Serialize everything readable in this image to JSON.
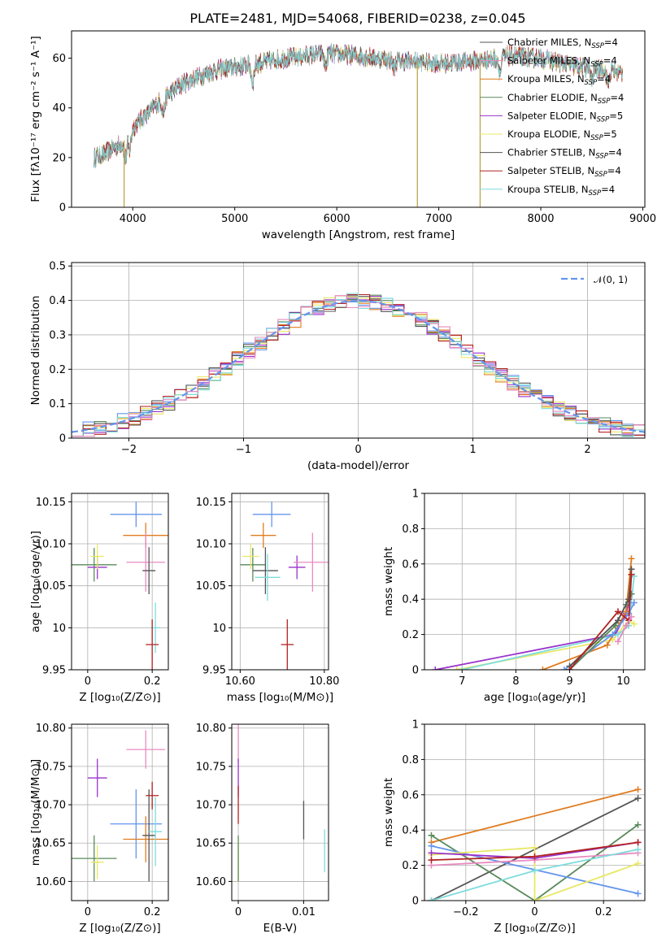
{
  "figure_title": "PLATE=2481, MJD=54068, FIBERID=0238, z=0.045",
  "colors": {
    "c0": "#6495ed",
    "c1": "#e07b1f",
    "c2": "#5a8a5a",
    "c3": "#9932cc",
    "c4": "#e8e866",
    "c5": "#555555",
    "c6": "#b22222",
    "c7": "#7fdcdc",
    "c8": "#e88bc0",
    "normal": "#6495ed"
  },
  "chart_data": [
    {
      "id": "spectrum",
      "type": "line",
      "xlabel": "wavelength [Angstrom, rest frame]",
      "ylabel": "Flux [fλ10⁻¹⁷ erg cm⁻² s⁻¹ A⁻¹]",
      "xlim": [
        3400,
        9020
      ],
      "ylim": [
        0,
        71
      ],
      "xticks": [
        4000,
        5000,
        6000,
        7000,
        8000,
        9000
      ],
      "yticks": [
        0,
        20,
        40,
        60
      ],
      "legend_position": "upper-right",
      "legend": [
        {
          "label": "Chabrier MILES, N",
          "sub": "SSP",
          "suffix": "=4",
          "color": "#555555"
        },
        {
          "label": "Salpeter MILES, N",
          "sub": "SSP",
          "suffix": "=4",
          "color": "#e88bc0"
        },
        {
          "label": "Kroupa MILES, N",
          "sub": "SSP",
          "suffix": "=4",
          "color": "#e07b1f"
        },
        {
          "label": "Chabrier ELODIE, N",
          "sub": "SSP",
          "suffix": "=4",
          "color": "#5a8a5a"
        },
        {
          "label": "Salpeter ELODIE, N",
          "sub": "SSP",
          "suffix": "=5",
          "color": "#9932cc"
        },
        {
          "label": "Kroupa ELODIE, N",
          "sub": "SSP",
          "suffix": "=5",
          "color": "#e8e866"
        },
        {
          "label": "Chabrier STELIB, N",
          "sub": "SSP",
          "suffix": "=4",
          "color": "#555555"
        },
        {
          "label": "Salpeter STELIB, N",
          "sub": "SSP",
          "suffix": "=4",
          "color": "#b22222"
        },
        {
          "label": "Kroupa STELIB, N",
          "sub": "SSP",
          "suffix": "=4",
          "color": "#7fdcdc"
        }
      ],
      "continuum": [
        [
          3620,
          20
        ],
        [
          3700,
          21
        ],
        [
          3900,
          26
        ],
        [
          4000,
          32
        ],
        [
          4300,
          44
        ],
        [
          4500,
          50
        ],
        [
          4800,
          55
        ],
        [
          5100,
          57
        ],
        [
          5500,
          60
        ],
        [
          5900,
          62
        ],
        [
          6200,
          61
        ],
        [
          6600,
          59
        ],
        [
          7000,
          58
        ],
        [
          7400,
          59
        ],
        [
          7700,
          61
        ],
        [
          8000,
          60
        ],
        [
          8300,
          57
        ],
        [
          8700,
          55
        ],
        [
          8800,
          54
        ]
      ],
      "dips": [
        [
          3930,
          8
        ],
        [
          3970,
          7
        ],
        [
          4300,
          6
        ],
        [
          5175,
          7
        ],
        [
          5890,
          5
        ],
        [
          6560,
          3
        ],
        [
          7600,
          6
        ],
        [
          8500,
          5
        ],
        [
          8660,
          6
        ]
      ],
      "spikes": [
        {
          "x": 3915,
          "y": 0
        },
        {
          "x": 6790,
          "y": 0
        },
        {
          "x": 7405,
          "y": 0
        }
      ]
    },
    {
      "id": "residuals",
      "type": "histogram",
      "xlabel": "(data-model)/error",
      "ylabel": "Normed distribution",
      "xlim": [
        -2.5,
        2.5
      ],
      "ylim": [
        0,
        0.51
      ],
      "xticks": [
        -2,
        -1,
        0,
        1,
        2
      ],
      "yticks": [
        0.0,
        0.1,
        0.2,
        0.3,
        0.4,
        0.5
      ],
      "grid": true,
      "bin_width": 0.1,
      "normal_curve": {
        "label": "𝒩(0, 1)",
        "mean": 0,
        "sigma": 1
      },
      "legend_position": "upper-right"
    },
    {
      "id": "age-vs-Z",
      "type": "errorbar",
      "xlabel": "Z [log₁₀(Z/Z⊙)]",
      "ylabel": "age  [log₁₀(age/yr)]",
      "xlim": [
        -0.05,
        0.25
      ],
      "ylim": [
        9.95,
        10.16
      ],
      "xticks": [
        0.0,
        0.2
      ],
      "yticks": [
        9.95,
        10.0,
        10.05,
        10.1,
        10.15
      ],
      "grid": true,
      "points": [
        {
          "x": 0.15,
          "y": 10.135,
          "xerr": 0.08,
          "yerr": 0.015,
          "color": "#6495ed"
        },
        {
          "x": 0.18,
          "y": 10.11,
          "xerr": 0.07,
          "yerr": 0.015,
          "color": "#e07b1f"
        },
        {
          "x": 0.02,
          "y": 10.075,
          "xerr": 0.07,
          "yerr": 0.02,
          "color": "#5a8a5a"
        },
        {
          "x": 0.03,
          "y": 10.072,
          "xerr": 0.03,
          "yerr": 0.014,
          "color": "#9932cc"
        },
        {
          "x": 0.03,
          "y": 10.085,
          "xerr": 0.02,
          "yerr": 0.015,
          "color": "#e8e866"
        },
        {
          "x": 0.18,
          "y": 10.078,
          "xerr": 0.06,
          "yerr": 0.035,
          "color": "#e88bc0"
        },
        {
          "x": 0.19,
          "y": 10.068,
          "xerr": 0.02,
          "yerr": 0.028,
          "color": "#555555"
        },
        {
          "x": 0.21,
          "y": 10.0,
          "xerr": 0.015,
          "yerr": 0.03,
          "color": "#7fdcdc"
        },
        {
          "x": 0.2,
          "y": 9.98,
          "xerr": 0.02,
          "yerr": 0.03,
          "color": "#b22222"
        }
      ]
    },
    {
      "id": "age-vs-mass",
      "type": "errorbar",
      "xlabel": "mass [log₁₀(M/M⊙)]",
      "ylabel": "",
      "xlim": [
        10.58,
        10.81
      ],
      "ylim": [
        9.95,
        10.16
      ],
      "xticks": [
        10.6,
        10.8
      ],
      "yticks": [
        9.95,
        10.0,
        10.05,
        10.1,
        10.15
      ],
      "grid": true,
      "points": [
        {
          "x": 10.675,
          "y": 10.135,
          "xerr": 0.045,
          "yerr": 0.015,
          "color": "#6495ed"
        },
        {
          "x": 10.655,
          "y": 10.11,
          "xerr": 0.03,
          "yerr": 0.015,
          "color": "#e07b1f"
        },
        {
          "x": 10.63,
          "y": 10.075,
          "xerr": 0.03,
          "yerr": 0.02,
          "color": "#5a8a5a"
        },
        {
          "x": 10.735,
          "y": 10.072,
          "xerr": 0.02,
          "yerr": 0.014,
          "color": "#9932cc"
        },
        {
          "x": 10.625,
          "y": 10.085,
          "xerr": 0.02,
          "yerr": 0.015,
          "color": "#e8e866"
        },
        {
          "x": 10.772,
          "y": 10.078,
          "xerr": 0.045,
          "yerr": 0.035,
          "color": "#e88bc0"
        },
        {
          "x": 10.66,
          "y": 10.068,
          "xerr": 0.03,
          "yerr": 0.028,
          "color": "#555555"
        },
        {
          "x": 10.665,
          "y": 10.06,
          "xerr": 0.03,
          "yerr": 0.028,
          "color": "#7fdcdc"
        },
        {
          "x": 10.712,
          "y": 9.98,
          "xerr": 0.015,
          "yerr": 0.03,
          "color": "#b22222"
        }
      ]
    },
    {
      "id": "weight-vs-age",
      "type": "line",
      "xlabel": "age  [log₁₀(age/yr)]",
      "ylabel": "mass weight",
      "xlim": [
        6.3,
        10.4
      ],
      "ylim": [
        0,
        1.0
      ],
      "xticks": [
        7,
        8,
        9,
        10
      ],
      "yticks": [
        0.0,
        0.2,
        0.4,
        0.6,
        0.8,
        1.0
      ],
      "grid": true,
      "series": [
        {
          "color": "#9932cc",
          "points": [
            [
              6.5,
              0.0
            ],
            [
              9.85,
              0.2
            ],
            [
              10.05,
              0.32
            ],
            [
              10.15,
              0.43
            ]
          ]
        },
        {
          "color": "#e8e866",
          "points": [
            [
              6.9,
              0.0
            ],
            [
              9.8,
              0.17
            ],
            [
              10.1,
              0.28
            ],
            [
              10.2,
              0.26
            ]
          ]
        },
        {
          "color": "#7fdcdc",
          "points": [
            [
              7.0,
              0.0
            ],
            [
              9.9,
              0.2
            ],
            [
              10.1,
              0.25
            ],
            [
              10.2,
              0.53
            ]
          ]
        },
        {
          "color": "#e07b1f",
          "points": [
            [
              8.5,
              0.0
            ],
            [
              9.7,
              0.14
            ],
            [
              10.05,
              0.33
            ],
            [
              10.15,
              0.63
            ]
          ]
        },
        {
          "color": "#6495ed",
          "points": [
            [
              8.9,
              0.0
            ],
            [
              9.8,
              0.2
            ],
            [
              10.1,
              0.32
            ],
            [
              10.2,
              0.38
            ]
          ]
        },
        {
          "color": "#5a8a5a",
          "points": [
            [
              9.0,
              0.0
            ],
            [
              9.85,
              0.25
            ],
            [
              10.05,
              0.37
            ],
            [
              10.15,
              0.43
            ]
          ]
        },
        {
          "color": "#555555",
          "points": [
            [
              9.0,
              0.02
            ],
            [
              9.9,
              0.28
            ],
            [
              10.1,
              0.4
            ],
            [
              10.15,
              0.57
            ]
          ]
        },
        {
          "color": "#b22222",
          "points": [
            [
              9.0,
              0.0
            ],
            [
              9.9,
              0.33
            ],
            [
              10.1,
              0.28
            ],
            [
              10.15,
              0.54
            ]
          ]
        },
        {
          "color": "#e88bc0",
          "points": [
            [
              9.9,
              0.16
            ],
            [
              10.05,
              0.25
            ],
            [
              10.15,
              0.3
            ]
          ]
        }
      ]
    },
    {
      "id": "mass-vs-Z",
      "type": "errorbar",
      "xlabel": "Z [log₁₀(Z/Z⊙)]",
      "ylabel": "mass [log₁₀(M/M⊙)]",
      "xlim": [
        -0.05,
        0.25
      ],
      "ylim": [
        10.575,
        10.805
      ],
      "xticks": [
        0.0,
        0.2
      ],
      "yticks": [
        10.6,
        10.65,
        10.7,
        10.75,
        10.8
      ],
      "grid": true,
      "points": [
        {
          "x": 0.15,
          "y": 10.675,
          "xerr": 0.08,
          "yerr": 0.045,
          "color": "#6495ed"
        },
        {
          "x": 0.18,
          "y": 10.655,
          "xerr": 0.07,
          "yerr": 0.03,
          "color": "#e07b1f"
        },
        {
          "x": 0.02,
          "y": 10.63,
          "xerr": 0.07,
          "yerr": 0.03,
          "color": "#5a8a5a"
        },
        {
          "x": 0.03,
          "y": 10.735,
          "xerr": 0.03,
          "yerr": 0.025,
          "color": "#9932cc"
        },
        {
          "x": 0.03,
          "y": 10.625,
          "xerr": 0.02,
          "yerr": 0.022,
          "color": "#e8e866"
        },
        {
          "x": 0.18,
          "y": 10.772,
          "xerr": 0.06,
          "yerr": 0.025,
          "color": "#e88bc0"
        },
        {
          "x": 0.19,
          "y": 10.66,
          "xerr": 0.02,
          "yerr": 0.06,
          "color": "#555555"
        },
        {
          "x": 0.21,
          "y": 10.665,
          "xerr": 0.02,
          "yerr": 0.045,
          "color": "#7fdcdc"
        },
        {
          "x": 0.2,
          "y": 10.712,
          "xerr": 0.02,
          "yerr": 0.018,
          "color": "#b22222"
        }
      ]
    },
    {
      "id": "mass-vs-ebv",
      "type": "errorbar",
      "xlabel": "E(B-V)",
      "ylabel": "",
      "xlim": [
        -0.001,
        0.0138
      ],
      "ylim": [
        10.575,
        10.805
      ],
      "xticks": [
        0.0,
        0.01
      ],
      "yticks": [
        10.6,
        10.65,
        10.7,
        10.75,
        10.8
      ],
      "grid": true,
      "points": [
        {
          "x": 0.0,
          "y": 10.78,
          "xerr": 0,
          "yerr": 0.025,
          "color": "#e88bc0"
        },
        {
          "x": 0.0,
          "y": 10.735,
          "xerr": 0,
          "yerr": 0.025,
          "color": "#9932cc"
        },
        {
          "x": 0.0,
          "y": 10.7,
          "xerr": 0,
          "yerr": 0.025,
          "color": "#b22222"
        },
        {
          "x": 0.0,
          "y": 10.625,
          "xerr": 0,
          "yerr": 0.025,
          "color": "#e8e866"
        },
        {
          "x": 0.0,
          "y": 10.63,
          "xerr": 0,
          "yerr": 0.03,
          "color": "#5a8a5a"
        },
        {
          "x": 0.01,
          "y": 10.68,
          "xerr": 0,
          "yerr": 0.025,
          "color": "#555555"
        },
        {
          "x": 0.0132,
          "y": 10.64,
          "xerr": 0,
          "yerr": 0.028,
          "color": "#7fdcdc"
        }
      ]
    },
    {
      "id": "weight-vs-Z",
      "type": "line",
      "xlabel": "Z [log₁₀(Z/Z⊙)]",
      "ylabel": "mass weight",
      "xlim": [
        -0.32,
        0.32
      ],
      "ylim": [
        0,
        1.0
      ],
      "xticks": [
        -0.2,
        0.0,
        0.2
      ],
      "yticks": [
        0.0,
        0.2,
        0.4,
        0.6,
        0.8,
        1.0
      ],
      "grid": true,
      "series": [
        {
          "color": "#e07b1f",
          "points": [
            [
              -0.3,
              0.33
            ],
            [
              0.3,
              0.63
            ]
          ]
        },
        {
          "color": "#555555",
          "points": [
            [
              -0.3,
              0.0
            ],
            [
              0.3,
              0.58
            ]
          ]
        },
        {
          "color": "#5a8a5a",
          "points": [
            [
              -0.3,
              0.37
            ],
            [
              0.0,
              0.0
            ],
            [
              0.3,
              0.43
            ]
          ]
        },
        {
          "color": "#6495ed",
          "points": [
            [
              -0.3,
              0.31
            ],
            [
              0.3,
              0.04
            ]
          ]
        },
        {
          "color": "#e8e866",
          "points": [
            [
              -0.3,
              0.26
            ],
            [
              0.0,
              0.3
            ],
            [
              0.0,
              0.0
            ],
            [
              0.3,
              0.21
            ]
          ]
        },
        {
          "color": "#9932cc",
          "points": [
            [
              -0.3,
              0.27
            ],
            [
              0.0,
              0.24
            ],
            [
              0.3,
              0.33
            ]
          ]
        },
        {
          "color": "#e88bc0",
          "points": [
            [
              -0.3,
              0.2
            ],
            [
              0.0,
              0.23
            ],
            [
              0.3,
              0.27
            ]
          ]
        },
        {
          "color": "#b22222",
          "points": [
            [
              -0.3,
              0.23
            ],
            [
              0.0,
              0.25
            ],
            [
              0.3,
              0.33
            ]
          ]
        },
        {
          "color": "#7fdcdc",
          "points": [
            [
              -0.3,
              0.0
            ],
            [
              0.0,
              0.17
            ],
            [
              0.3,
              0.29
            ]
          ]
        }
      ]
    }
  ]
}
